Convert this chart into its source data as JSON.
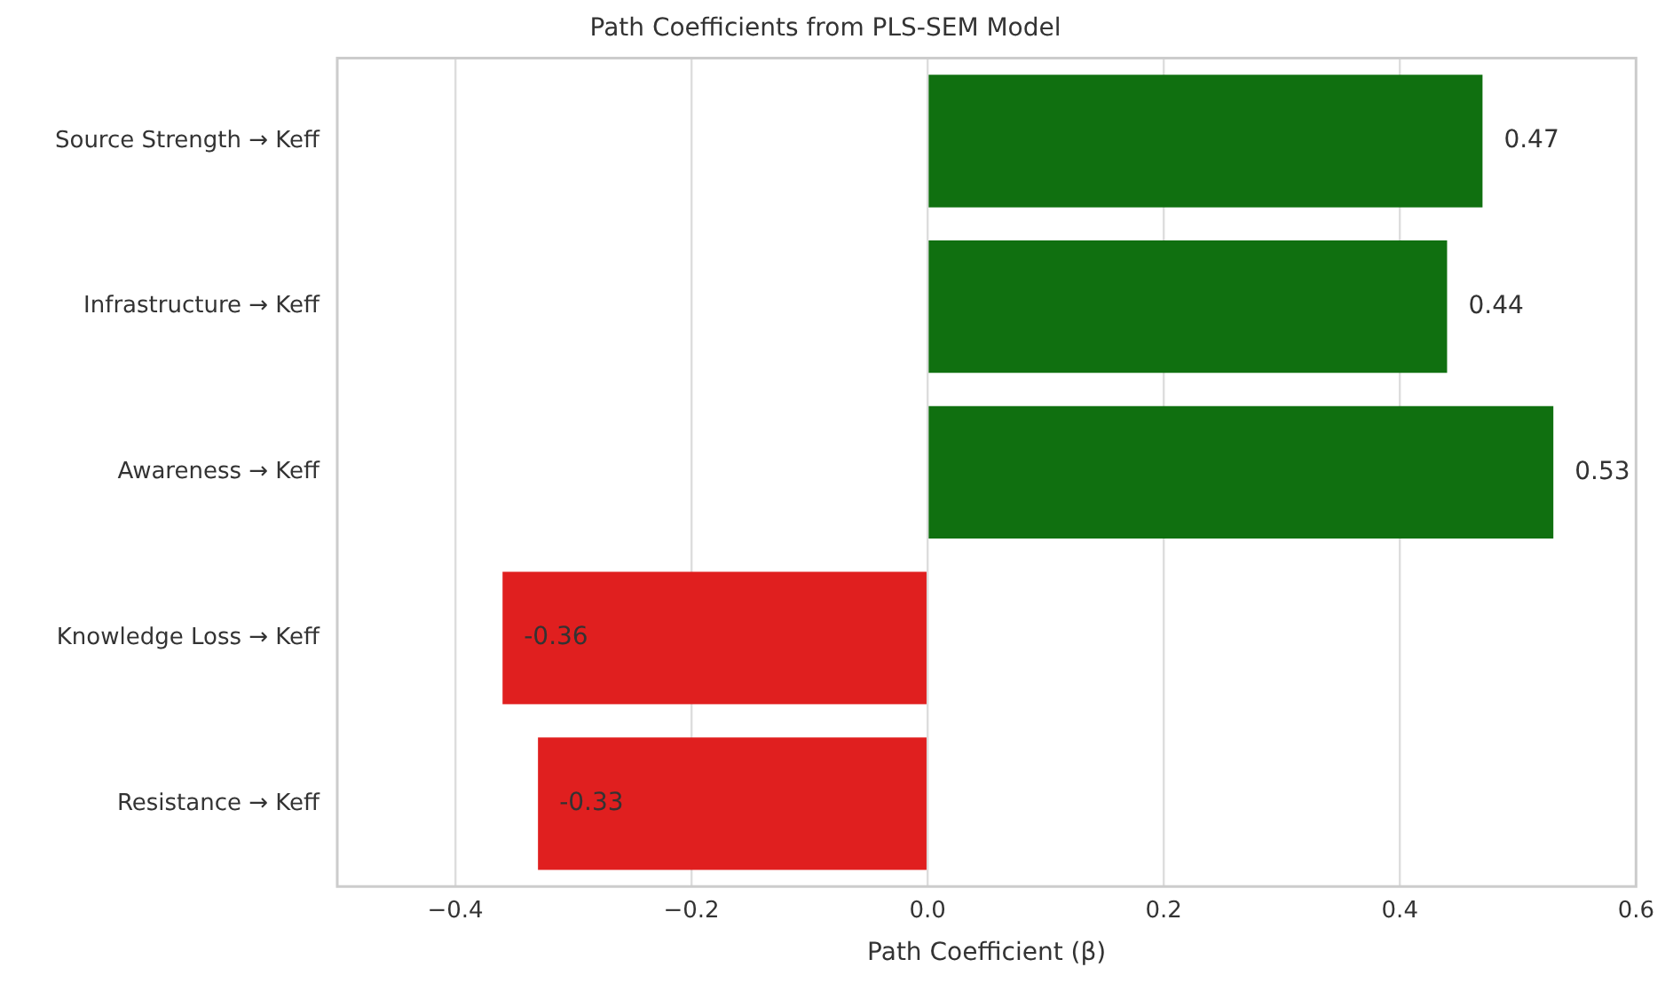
{
  "chart_data": {
    "type": "bar",
    "orientation": "horizontal",
    "title": "Path Coefficients from PLS-SEM Model",
    "xlabel": "Path Coefficient (β)",
    "categories": [
      "Source Strength → Keff",
      "Infrastructure → Keff",
      "Awareness → Keff",
      "Knowledge Loss → Keff",
      "Resistance → Keff"
    ],
    "values": [
      0.47,
      0.44,
      0.53,
      -0.36,
      -0.33
    ],
    "colors": [
      "#107010",
      "#107010",
      "#107010",
      "#e01f1f",
      "#e01f1f"
    ],
    "xlim": [
      -0.5,
      0.6
    ],
    "xticks": [
      {
        "value": -0.4,
        "label": "−0.4"
      },
      {
        "value": -0.2,
        "label": "−0.2"
      },
      {
        "value": 0,
        "label": "0.0"
      },
      {
        "value": 0.2,
        "label": "0.2"
      },
      {
        "value": 0.4,
        "label": "0.4"
      },
      {
        "value": 0.6,
        "label": "0.6"
      }
    ],
    "grid": "x",
    "legend": false,
    "data_labels": true
  }
}
